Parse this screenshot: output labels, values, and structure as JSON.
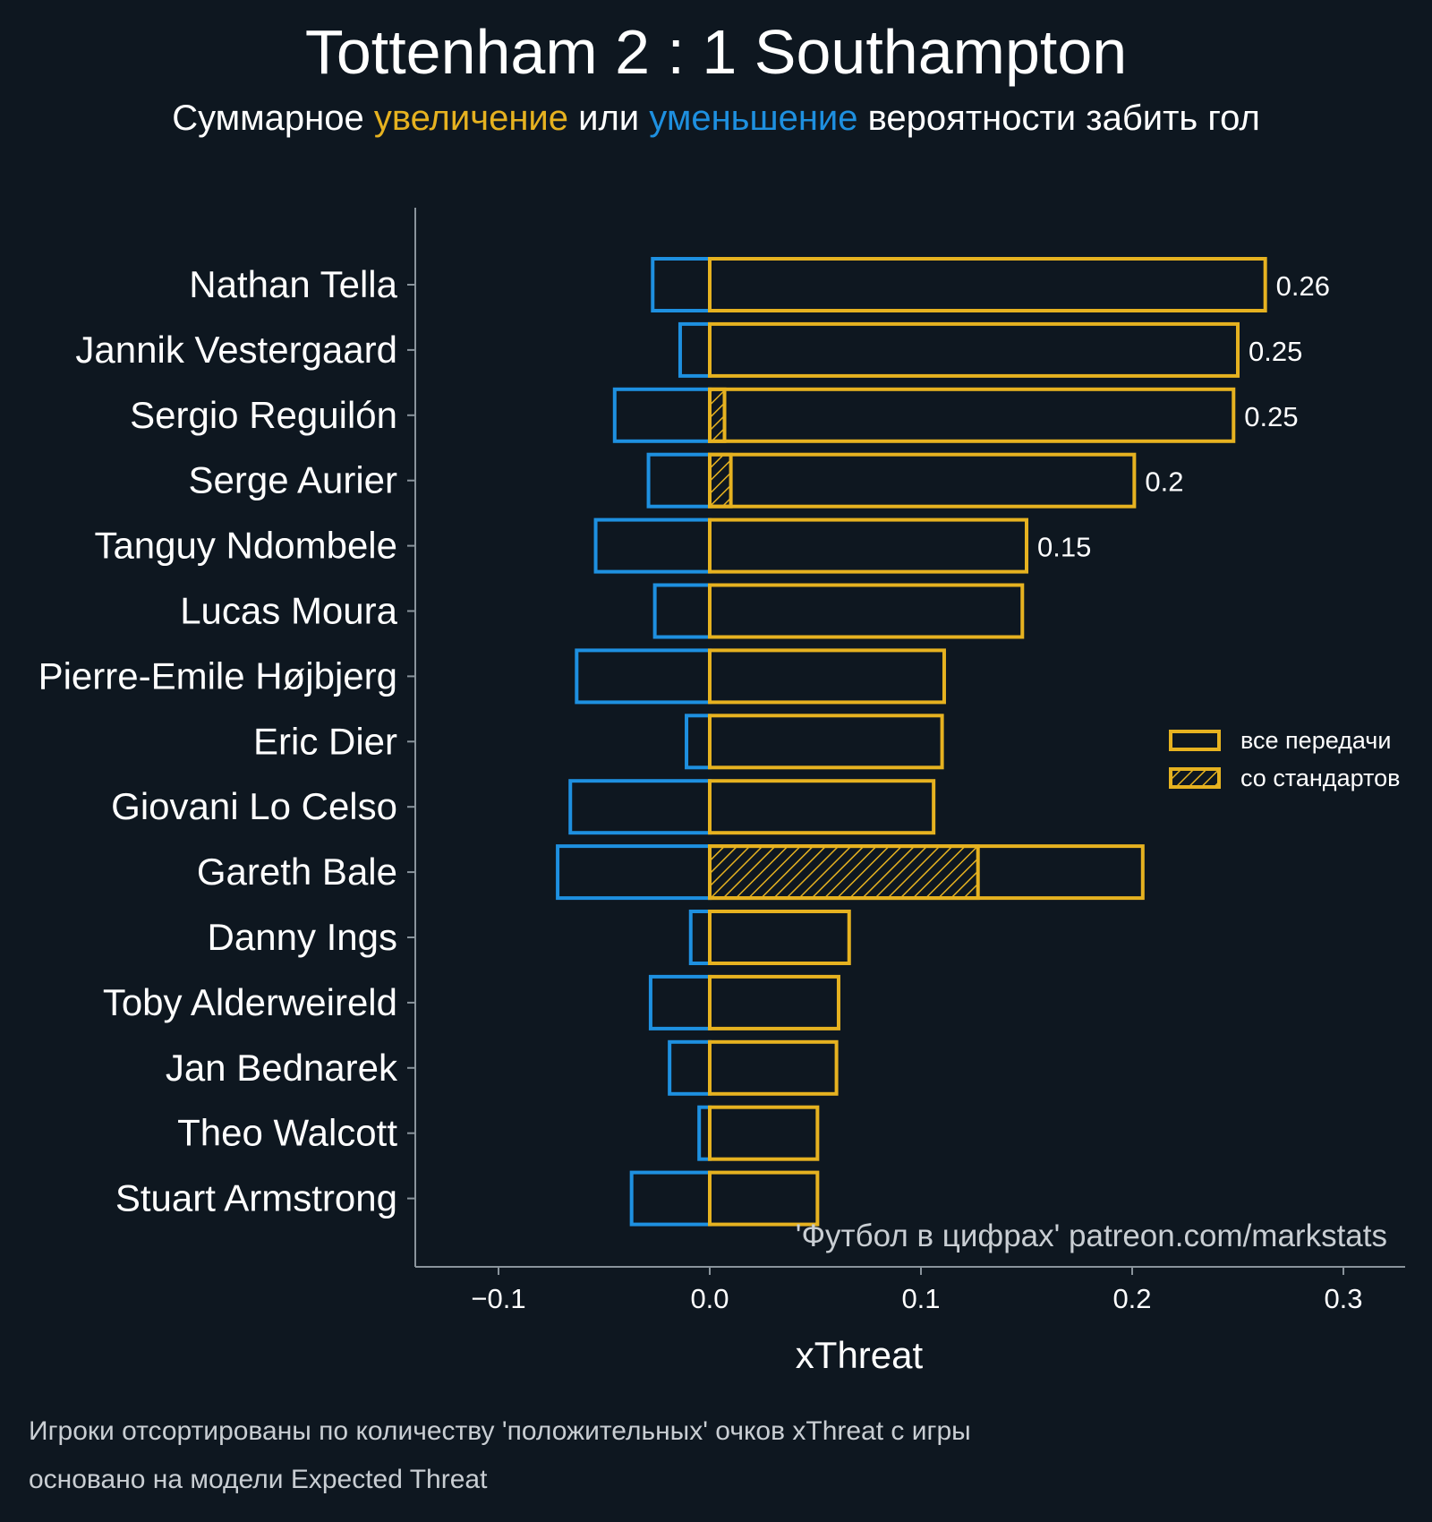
{
  "title": "Tottenham 2 : 1 Southampton",
  "subtitle": {
    "part1": "Суммарное ",
    "positive": "увеличение",
    "part2": " или ",
    "negative": "уменьшение",
    "part3": " вероятности забить гол"
  },
  "colors": {
    "background": "#0e1720",
    "positive": "#e6b220",
    "negative": "#1e90e0",
    "axis": "#8a949c",
    "text": "#ffffff"
  },
  "chart_data": {
    "type": "bar",
    "orientation": "horizontal",
    "xlabel": "xThreat",
    "xlim": [
      -0.14,
      0.33
    ],
    "xticks": [
      -0.1,
      0.0,
      0.1,
      0.2,
      0.3
    ],
    "xtick_labels": [
      "−0.1",
      "0.0",
      "0.1",
      "0.2",
      "0.3"
    ],
    "categories": [
      "Nathan Tella",
      "Jannik Vestergaard",
      "Sergio Reguilón",
      "Serge Aurier",
      "Tanguy Ndombele",
      "Lucas Moura",
      "Pierre-Emile Højbjerg",
      "Eric Dier",
      "Giovani Lo Celso",
      "Gareth Bale",
      "Danny Ings",
      "Toby Alderweireld",
      "Jan Bednarek",
      "Theo Walcott",
      "Stuart Armstrong"
    ],
    "series": [
      {
        "name": "увеличение (все передачи)",
        "values": [
          0.263,
          0.25,
          0.248,
          0.201,
          0.15,
          0.148,
          0.111,
          0.11,
          0.106,
          0.205,
          0.066,
          0.061,
          0.06,
          0.051,
          0.051
        ]
      },
      {
        "name": "увеличение (со стандартов)",
        "values": [
          0,
          0,
          0.007,
          0.01,
          0,
          0,
          0,
          0,
          0,
          0.127,
          0,
          0,
          0,
          0,
          0
        ]
      },
      {
        "name": "уменьшение",
        "values": [
          -0.027,
          -0.014,
          -0.045,
          -0.029,
          -0.054,
          -0.026,
          -0.063,
          -0.011,
          -0.066,
          -0.072,
          -0.009,
          -0.028,
          -0.019,
          -0.005,
          -0.037
        ]
      }
    ],
    "value_labels": [
      "0.26",
      "0.25",
      "0.25",
      "0.2",
      "0.15",
      "",
      "",
      "",
      "",
      "",
      "",
      "",
      "",
      "",
      ""
    ],
    "legend": {
      "position": "right",
      "entries": [
        "все передачи",
        "со стандартов"
      ]
    },
    "watermark": "'Футбол в цифрах' patreon.com/markstats"
  },
  "footnotes": [
    "Игроки отсортированы по количеству 'положительных' очков xThreat с игры",
    "основано на модели Expected Threat"
  ]
}
